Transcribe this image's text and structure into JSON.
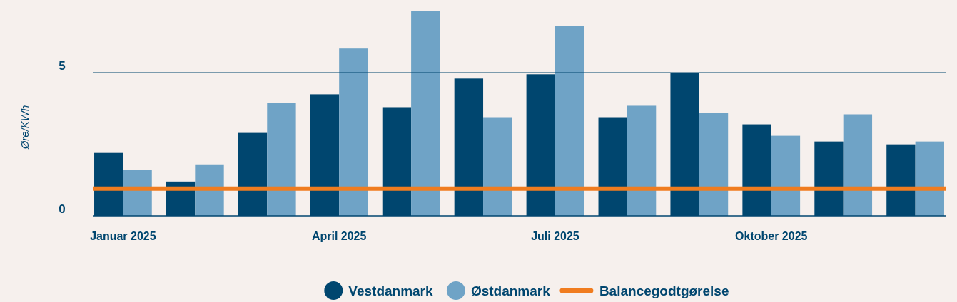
{
  "chart_data": {
    "type": "bar",
    "ylabel": "Øre/KWh",
    "categories": [
      "Januar 2025",
      null,
      null,
      "April 2025",
      null,
      null,
      "Juli 2025",
      null,
      null,
      "Oktober 2025",
      null,
      null
    ],
    "series": [
      {
        "name": "Vestdanmark",
        "color": "#00466f",
        "values": [
          2.2,
          1.2,
          2.9,
          4.25,
          3.8,
          4.8,
          4.95,
          3.45,
          5.0,
          3.2,
          2.6,
          2.5
        ]
      },
      {
        "name": "Østdanmark",
        "color": "#6fa3c6",
        "values": [
          1.6,
          1.8,
          3.95,
          5.85,
          7.15,
          3.45,
          6.65,
          3.85,
          3.6,
          2.8,
          3.55,
          2.6
        ]
      }
    ],
    "ref_lines": [
      {
        "axis": "y",
        "value": 5,
        "color": "#00466f"
      },
      {
        "axis": "y",
        "value": 0.95,
        "label": "Balancegodtgørelse",
        "color": "#f07c1f"
      }
    ],
    "ylim": [
      0,
      7.2
    ],
    "yticks": [
      0,
      5
    ],
    "legend": "bottom"
  }
}
